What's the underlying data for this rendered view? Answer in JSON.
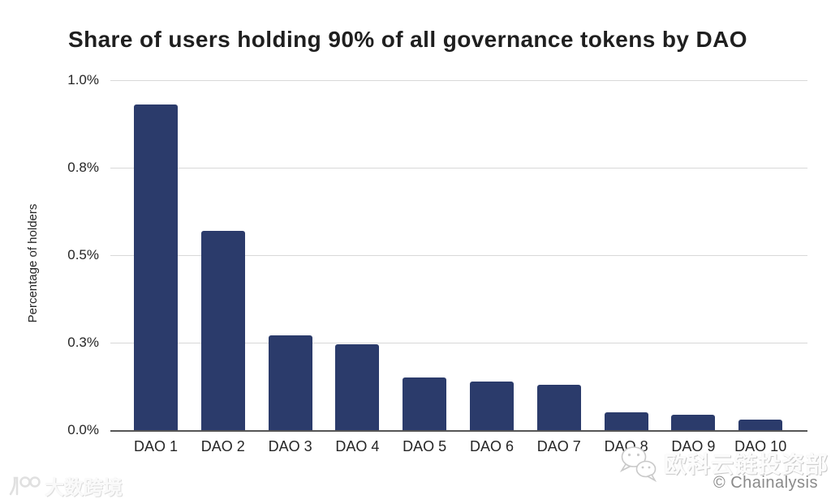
{
  "title": "Share of users holding 90% of all governance tokens by DAO",
  "chart_data": {
    "type": "bar",
    "title": "Share of users holding 90% of all governance tokens by DAO",
    "categories": [
      "DAO 1",
      "DAO 2",
      "DAO 3",
      "DAO 4",
      "DAO 5",
      "DAO 6",
      "DAO 7",
      "DAO 8",
      "DAO 9",
      "DAO 10"
    ],
    "values": [
      0.93,
      0.57,
      0.27,
      0.245,
      0.15,
      0.14,
      0.13,
      0.05,
      0.045,
      0.03
    ],
    "unit": "%",
    "xlabel": "",
    "ylabel": "Percentage of holders",
    "ylim": [
      0,
      1.0
    ],
    "yticks": [
      {
        "label": "0.0%",
        "value": 0
      },
      {
        "label": "0.3%",
        "value": 0.25
      },
      {
        "label": "0.5%",
        "value": 0.5
      },
      {
        "label": "0.8%",
        "value": 0.75
      },
      {
        "label": "1.0%",
        "value": 1.0
      }
    ],
    "grid": "horizontal",
    "legend": "none",
    "bar_color": "#2b3b6b"
  },
  "footer": {
    "credit": "© Chainalysis",
    "watermark_left": {
      "logo": "dsb-100-logo",
      "text": "大数跨境"
    },
    "watermark_right": {
      "icon": "wechat-icon",
      "text": "欧科云链投资部"
    }
  },
  "colors": {
    "bar": "#2b3b6b",
    "gridline": "#d8d8d8",
    "axis_line": "#555555",
    "text": "#262626",
    "credit_text": "#8a8a8a"
  }
}
